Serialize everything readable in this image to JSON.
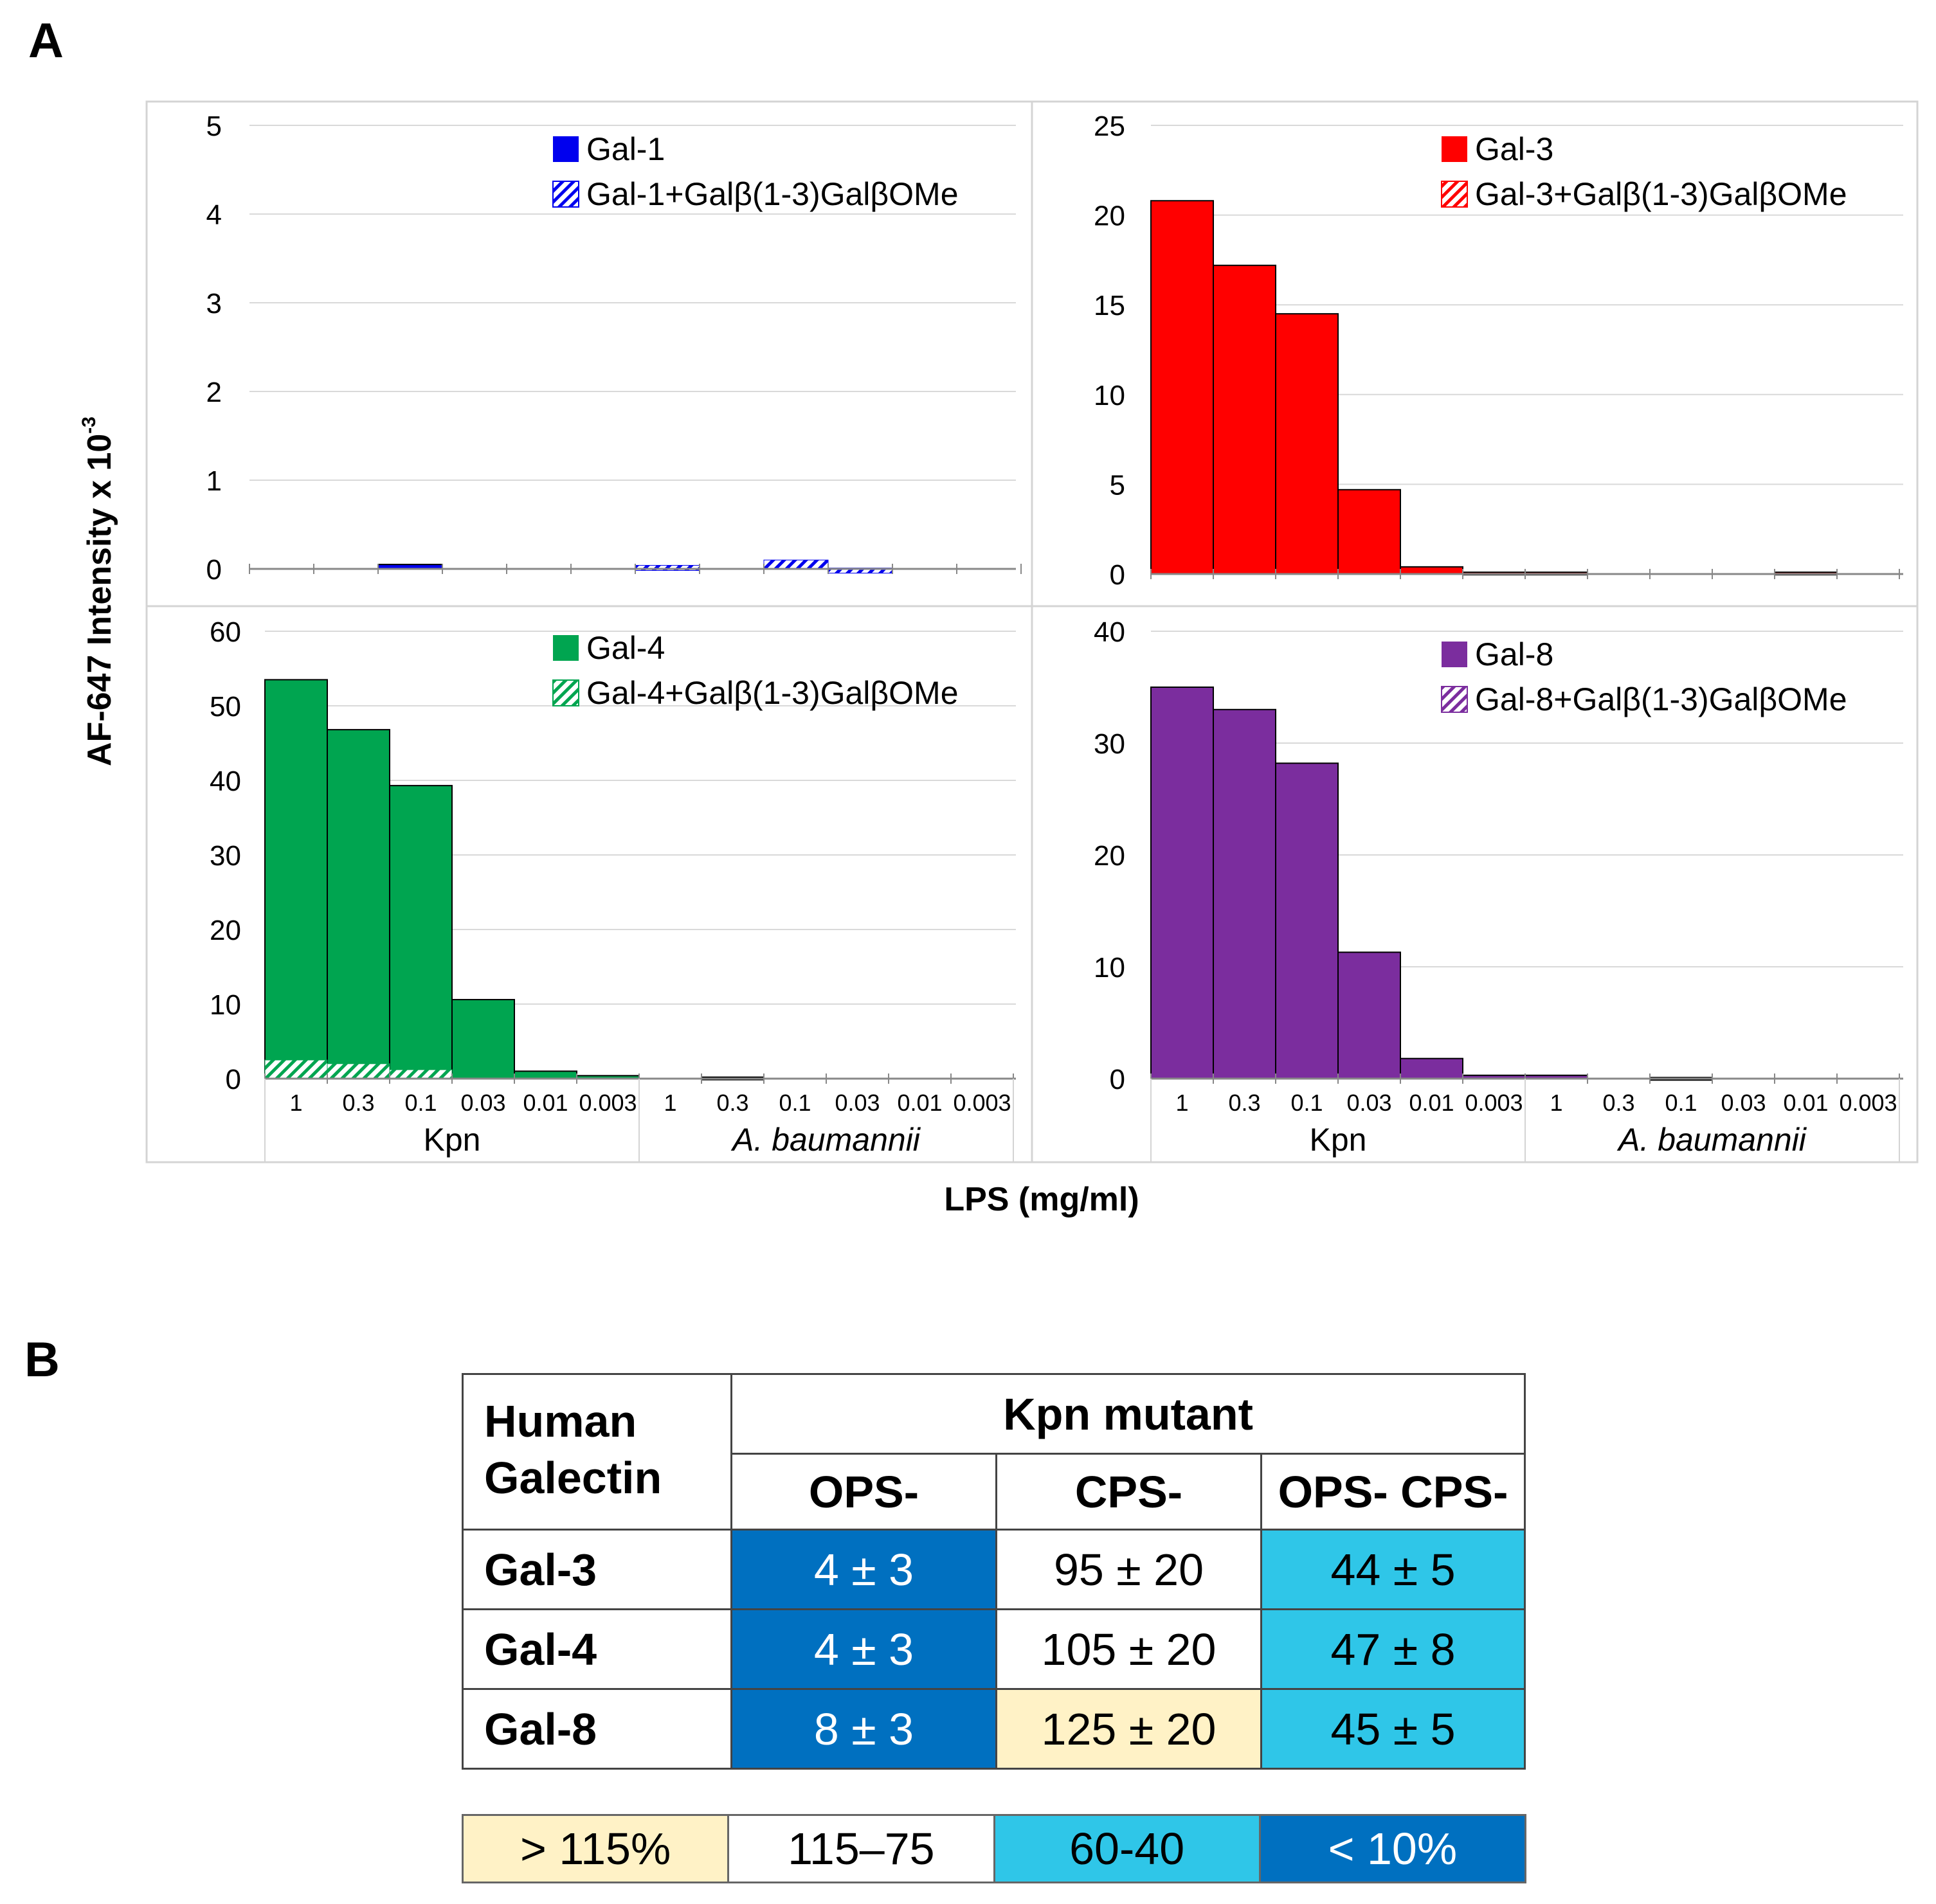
{
  "panel_a_label": "A",
  "panel_b_label": "B",
  "y_axis_label": "AF-647 Intensity x 10",
  "y_axis_exponent": "-3",
  "x_axis_label": "LPS (mg/ml)",
  "colors": {
    "gal1": "#0000ee",
    "gal3": "#ff0000",
    "gal4": "#00a550",
    "gal8": "#7b2d9e",
    "dark_blue": "#0070c0",
    "light_blue": "#2fc6e8",
    "light_yellow": "#fff2c6"
  },
  "chart_data": [
    {
      "type": "bar",
      "title": "Gal-1",
      "categories": [
        "1",
        "0.3",
        "0.1",
        "0.03",
        "0.01",
        "0.003",
        "1",
        "0.3",
        "0.1",
        "0.03",
        "0.01",
        "0.003"
      ],
      "groups": [
        "Kpn",
        "A. baumannii"
      ],
      "series": [
        {
          "name": "Gal-1",
          "values": [
            0,
            0,
            0.05,
            0,
            0,
            0,
            0,
            0,
            0,
            0,
            0,
            0
          ]
        },
        {
          "name": "Gal-1+Galβ(1-3)GalβOMe",
          "values": [
            0,
            0,
            0,
            0,
            0,
            0,
            0.04,
            0,
            0.1,
            0.01,
            0,
            0
          ]
        }
      ],
      "ylim": [
        0,
        5
      ],
      "yticks": [
        0,
        1,
        2,
        3,
        4,
        5
      ]
    },
    {
      "type": "bar",
      "title": "Gal-3",
      "categories": [
        "1",
        "0.3",
        "0.1",
        "0.03",
        "0.01",
        "0.003",
        "1",
        "0.3",
        "0.1",
        "0.03",
        "0.01",
        "0.003"
      ],
      "groups": [
        "Kpn",
        "A. baumannii"
      ],
      "series": [
        {
          "name": "Gal-3",
          "values": [
            20.8,
            17.2,
            14.5,
            4.7,
            0.4,
            0.1,
            0.1,
            0,
            0,
            0,
            0.1,
            0
          ]
        },
        {
          "name": "Gal-3+Galβ(1-3)GalβOMe",
          "values": [
            0,
            0,
            0,
            0,
            0,
            0,
            0,
            0,
            0,
            0,
            0,
            0
          ]
        }
      ],
      "ylim": [
        0,
        25
      ],
      "yticks": [
        0,
        5,
        10,
        15,
        20,
        25
      ]
    },
    {
      "type": "bar",
      "title": "Gal-4",
      "categories": [
        "1",
        "0.3",
        "0.1",
        "0.03",
        "0.01",
        "0.003",
        "1",
        "0.3",
        "0.1",
        "0.03",
        "0.01",
        "0.003"
      ],
      "groups": [
        "Kpn",
        "A. baumannii"
      ],
      "series": [
        {
          "name": "Gal-4",
          "values": [
            53.5,
            46.8,
            39.3,
            10.6,
            1.0,
            0.4,
            0,
            0.2,
            0,
            0,
            0,
            0
          ]
        },
        {
          "name": "Gal-4+Galβ(1-3)GalβOMe",
          "values": [
            2.5,
            2.0,
            1.2,
            0,
            0,
            0,
            0,
            0,
            0,
            0,
            0,
            0
          ]
        }
      ],
      "ylim": [
        0,
        60
      ],
      "yticks": [
        0,
        10,
        20,
        30,
        40,
        50,
        60
      ]
    },
    {
      "type": "bar",
      "title": "Gal-8",
      "categories": [
        "1",
        "0.3",
        "0.1",
        "0.03",
        "0.01",
        "0.003",
        "1",
        "0.3",
        "0.1",
        "0.03",
        "0.01",
        "0.003"
      ],
      "groups": [
        "Kpn",
        "A. baumannii"
      ],
      "series": [
        {
          "name": "Gal-8",
          "values": [
            35,
            33,
            28.2,
            11.3,
            1.8,
            0.3,
            0.3,
            0,
            0.1,
            0,
            0,
            0
          ]
        },
        {
          "name": "Gal-8+Galβ(1-3)GalβOMe",
          "values": [
            0,
            0,
            0,
            0,
            0,
            0,
            0,
            0,
            0,
            0,
            0,
            0
          ]
        }
      ],
      "ylim": [
        0,
        40
      ],
      "yticks": [
        0,
        10,
        20,
        30,
        40
      ]
    }
  ],
  "table": {
    "corner_line1": "Human",
    "corner_line2": "Galectin",
    "group_header": "Kpn mutant",
    "columns": [
      "OPS-",
      "CPS-",
      "OPS- CPS-"
    ],
    "rows": [
      {
        "name": "Gal-3",
        "cells": [
          "4 ± 3",
          "95 ± 20",
          "44 ± 5"
        ]
      },
      {
        "name": "Gal-4",
        "cells": [
          "4 ± 3",
          "105 ± 20",
          "47 ± 8"
        ]
      },
      {
        "name": "Gal-8",
        "cells": [
          "8 ± 3",
          "125 ± 20",
          "45 ± 5"
        ]
      }
    ]
  },
  "legend": [
    {
      "label": "> 115%",
      "color": "#fff2c6",
      "text_color": "#000000"
    },
    {
      "label": "115–75",
      "color": "#ffffff",
      "text_color": "#000000"
    },
    {
      "label": "60-40",
      "color": "#2fc6e8",
      "text_color": "#000000"
    },
    {
      "label": "< 10%",
      "color": "#0070c0",
      "text_color": "#ffffff"
    }
  ]
}
